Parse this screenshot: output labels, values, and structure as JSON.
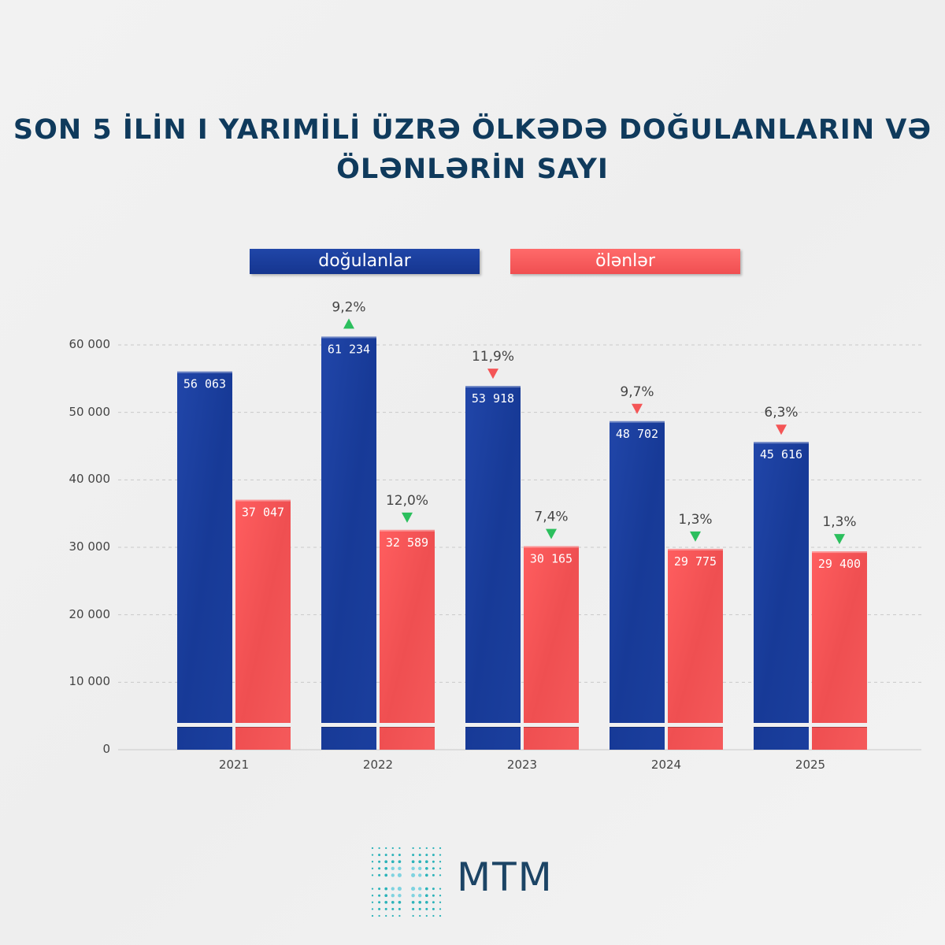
{
  "title_line1": "SON 5 İLİN I YARIMİLİ ÜZRƏ ÖLKƏDƏ DOĞULANLARIN VƏ",
  "title_line2": "ÖLƏNLƏRİN SAYI",
  "legend": {
    "births": "doğulanlar",
    "deaths": "ölənlər"
  },
  "brand": "MTM",
  "colors": {
    "births": "#1a3d9c",
    "deaths": "#f45556",
    "up": "#2bbf5d",
    "down": "#f45556",
    "title": "#0f3a5c"
  },
  "chart_data": {
    "type": "bar",
    "title": "SON 5 İLİN I YARIMİLİ ÜZRƏ ÖLKƏDƏ DOĞULANLARIN VƏ ÖLƏNLƏRİN SAYI",
    "categories": [
      "2021",
      "2022",
      "2023",
      "2024",
      "2025"
    ],
    "ylim": [
      0,
      60000
    ],
    "yticks": [
      "0",
      "10 000",
      "20 000",
      "30 000",
      "40 000",
      "50 000",
      "60 000"
    ],
    "grid": true,
    "legend_position": "top",
    "series": [
      {
        "name": "doğulanlar",
        "values": [
          56063,
          61234,
          53918,
          48702,
          45616
        ],
        "labels": [
          "56 063",
          "61 234",
          "53 918",
          "48 702",
          "45 616"
        ],
        "changes": [
          null,
          "9,2%",
          "11,9%",
          "9,7%",
          "6,3%"
        ],
        "directions": [
          null,
          "up",
          "down",
          "down",
          "down"
        ]
      },
      {
        "name": "ölənlər",
        "values": [
          37047,
          32589,
          30165,
          29775,
          29400
        ],
        "labels": [
          "37 047",
          "32 589",
          "30 165",
          "29 775",
          "29 400"
        ],
        "changes": [
          null,
          "12,0%",
          "7,4%",
          "1,3%",
          "1,3%"
        ],
        "directions": [
          null,
          "down",
          "down",
          "down",
          "down"
        ]
      }
    ]
  }
}
